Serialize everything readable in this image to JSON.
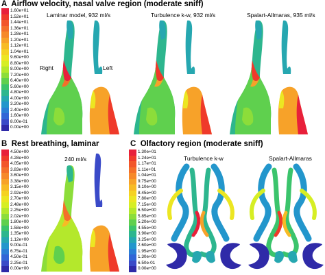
{
  "panels": {
    "a": {
      "letter": "A",
      "title": "Airflow velocity,  nasal valve region (moderate sniff)",
      "models": [
        "Laminar model, 932 ml/s",
        "Turbulence k-w, 932 ml/s",
        "Spalart-Allmaras, 935 ml/s"
      ],
      "right_label": "Right",
      "left_label": "Left",
      "scale": [
        "1.60e+01",
        "1.52e+01",
        "1.44e+01",
        "1.36e+01",
        "1.28e+01",
        "1.20e+01",
        "1.12e+01",
        "1.04e+01",
        "9.60e+00",
        "8.80e+00",
        "8.00e+00",
        "7.20e+00",
        "6.40e+00",
        "5.60e+00",
        "4.80e+00",
        "4.00e+00",
        "3.20e+00",
        "2.40e+00",
        "1.60e+00",
        "8.00e-01",
        "0.00e+00"
      ]
    },
    "b": {
      "letter": "B",
      "title": "Rest breathing, laminar",
      "flow": "240 ml/s",
      "scale": [
        "4.50e+00",
        "4.28e+00",
        "4.05e+00",
        "3.83e+00",
        "3.60e+00",
        "3.38e+00",
        "3.15e+00",
        "2.92e+00",
        "2.70e+00",
        "2.48e+00",
        "2.25e+00",
        "2.02e+00",
        "1.80e+00",
        "1.58e+00",
        "1.35e+00",
        "1.12e+00",
        "9.00e-01",
        "6.75e-01",
        "4.50e-01",
        "2.25e-01",
        "0.00e+00"
      ]
    },
    "c": {
      "letter": "C",
      "title": "Olfactory region (moderate sniff)",
      "models": [
        "Turbulence k-w",
        "Spalart-Allmaras"
      ],
      "scale": [
        "1.30e+01",
        "1.24e+01",
        "1.17e+01",
        "1.11e+01",
        "1.04e+01",
        "9.75e+00",
        "9.10e+00",
        "8.45e+00",
        "7.80e+00",
        "7.15e+00",
        "6.50e+00",
        "5.85e+00",
        "5.20e+00",
        "4.55e+00",
        "3.90e+00",
        "3.25e+00",
        "2.60e+00",
        "1.95e+00",
        "1.30e+00",
        "6.50e-01",
        "0.00e+00"
      ]
    }
  },
  "colormap": [
    "#e8203a",
    "#ef3a2a",
    "#f2562a",
    "#f4702a",
    "#f6892a",
    "#f7a229",
    "#f7bb25",
    "#f5d222",
    "#ece622",
    "#d6ee24",
    "#b4e82c",
    "#8cdd3a",
    "#5fd04e",
    "#3bc46c",
    "#2db68e",
    "#26a7b0",
    "#2396cc",
    "#2a7fd6",
    "#3166d6",
    "#3a4ac8",
    "#2f2aa8"
  ]
}
